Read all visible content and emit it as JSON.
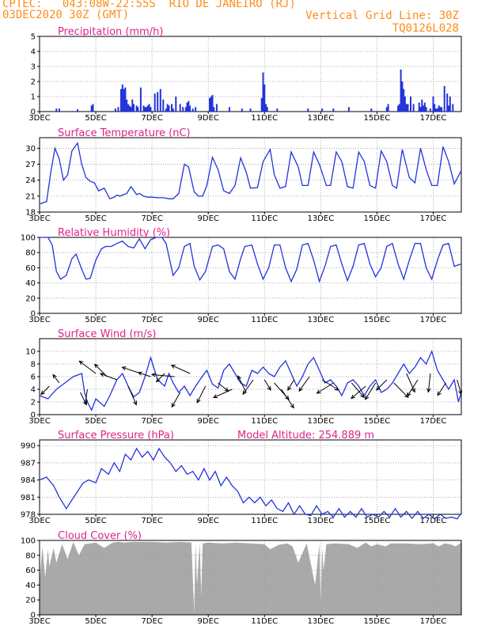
{
  "header": {
    "line1_left": "CPTEC:   043:08W-22:55S  RIO DE JANEIRO (RJ)",
    "line2_left": "03DEC2020 30Z (GMT)",
    "line1_right": "Vertical Grid Line: 30Z",
    "line2_right": "TQ0126L028"
  },
  "colors": {
    "header": "#ff8c1a",
    "title": "#e0208a",
    "line": "#2233dd",
    "cloud": "#a9a9a9",
    "grid": "#999999"
  },
  "x_ticks": [
    "3DEC",
    "5DEC",
    "7DEC",
    "9DEC",
    "11DEC",
    "13DEC",
    "15DEC",
    "17DEC"
  ],
  "x_tick_day_offset": [
    0,
    2,
    4,
    6,
    8,
    10,
    12,
    14
  ],
  "x_range_days": [
    0,
    15
  ],
  "chart_data": [
    {
      "id": "precip",
      "type": "bar",
      "title": "Precipitation (mm/h)",
      "ylim": [
        0,
        5
      ],
      "yticks": [
        0,
        1,
        2,
        3,
        4,
        5
      ],
      "x_days": [
        0.6,
        0.7,
        1.35,
        1.85,
        1.9,
        2.7,
        2.8,
        2.9,
        2.95,
        3.0,
        3.05,
        3.1,
        3.15,
        3.2,
        3.25,
        3.3,
        3.35,
        3.45,
        3.5,
        3.6,
        3.7,
        3.75,
        3.8,
        3.85,
        3.9,
        3.95,
        4.1,
        4.2,
        4.3,
        4.4,
        4.5,
        4.55,
        4.6,
        4.7,
        4.75,
        4.85,
        5.0,
        5.1,
        5.2,
        5.25,
        5.3,
        5.35,
        5.45,
        5.55,
        6.05,
        6.1,
        6.15,
        6.2,
        6.3,
        6.75,
        7.2,
        7.5,
        7.9,
        7.95,
        8.0,
        8.05,
        8.1,
        8.45,
        9.55,
        10.05,
        10.45,
        11.0,
        11.8,
        12.35,
        12.4,
        12.75,
        12.8,
        12.85,
        12.9,
        12.95,
        13.0,
        13.05,
        13.1,
        13.2,
        13.3,
        13.5,
        13.55,
        13.6,
        13.65,
        13.7,
        13.75,
        13.9,
        14.0,
        14.05,
        14.1,
        14.15,
        14.2,
        14.25,
        14.3,
        14.4,
        14.5,
        14.55,
        14.6,
        14.7
      ],
      "values": [
        0.2,
        0.2,
        0.15,
        0.4,
        0.5,
        0.2,
        0.3,
        1.5,
        1.8,
        1.5,
        1.6,
        0.8,
        0.5,
        0.4,
        0.3,
        0.8,
        0.5,
        0.4,
        0.3,
        1.6,
        0.4,
        0.3,
        0.3,
        0.4,
        0.5,
        0.3,
        1.2,
        1.3,
        1.5,
        0.8,
        0.2,
        0.5,
        0.4,
        0.5,
        0.2,
        1.0,
        0.5,
        0.3,
        0.3,
        0.6,
        0.7,
        0.4,
        0.2,
        0.3,
        0.9,
        1.0,
        1.1,
        0.3,
        0.5,
        0.3,
        0.2,
        0.2,
        0.9,
        2.6,
        1.8,
        0.5,
        0.3,
        0.2,
        0.2,
        0.2,
        0.2,
        0.3,
        0.2,
        0.3,
        0.5,
        0.4,
        0.5,
        2.8,
        2.0,
        1.5,
        1.0,
        0.5,
        0.5,
        1.0,
        0.5,
        0.6,
        0.3,
        0.8,
        0.4,
        0.6,
        0.3,
        0.2,
        1.0,
        0.5,
        0.2,
        0.2,
        0.4,
        0.3,
        0.3,
        1.7,
        1.2,
        0.4,
        1.0,
        0.5
      ]
    },
    {
      "id": "temp",
      "type": "line",
      "title": "Surface Temperature (nC)",
      "ylim": [
        18,
        32
      ],
      "yticks": [
        18,
        21,
        24,
        27,
        30
      ],
      "x_days": [
        0,
        0.25,
        0.4,
        0.55,
        0.7,
        0.85,
        1.0,
        1.15,
        1.35,
        1.5,
        1.65,
        1.8,
        1.95,
        2.1,
        2.3,
        2.5,
        2.65,
        2.75,
        2.85,
        2.95,
        3.1,
        3.25,
        3.45,
        3.55,
        3.7,
        3.85,
        4.0,
        4.2,
        4.4,
        4.6,
        4.75,
        4.95,
        5.15,
        5.3,
        5.5,
        5.65,
        5.8,
        5.95,
        6.15,
        6.35,
        6.55,
        6.75,
        6.95,
        7.15,
        7.35,
        7.5,
        7.75,
        7.95,
        8.2,
        8.35,
        8.55,
        8.75,
        8.95,
        9.2,
        9.35,
        9.55,
        9.75,
        9.95,
        10.2,
        10.35,
        10.55,
        10.75,
        10.95,
        11.15,
        11.35,
        11.55,
        11.75,
        11.95,
        12.15,
        12.35,
        12.55,
        12.7,
        12.9,
        13.15,
        13.35,
        13.55,
        13.75,
        13.95,
        14.15,
        14.35,
        14.55,
        14.75,
        15.0
      ],
      "values": [
        19.5,
        20.0,
        25.5,
        30.0,
        28.0,
        24.0,
        25.0,
        29.5,
        31.0,
        27.0,
        24.5,
        23.8,
        23.5,
        22.0,
        22.5,
        20.5,
        20.8,
        21.2,
        21.0,
        21.2,
        21.5,
        22.8,
        21.3,
        21.5,
        21.0,
        20.8,
        20.8,
        20.7,
        20.7,
        20.5,
        20.5,
        21.5,
        27.0,
        26.5,
        21.8,
        21.0,
        21.0,
        23.0,
        28.3,
        26.0,
        22.0,
        21.5,
        23.0,
        28.2,
        25.5,
        22.5,
        22.6,
        27.5,
        29.8,
        25.0,
        22.5,
        22.8,
        29.3,
        26.5,
        23.0,
        23.0,
        29.3,
        27.0,
        23.0,
        23.0,
        29.3,
        27.5,
        22.8,
        22.5,
        29.3,
        27.5,
        23.0,
        22.5,
        29.5,
        27.5,
        23.0,
        22.5,
        29.8,
        24.5,
        23.5,
        30.0,
        26.0,
        23.0,
        23.0,
        30.3,
        27.5,
        23.3,
        25.8
      ]
    },
    {
      "id": "rh",
      "type": "line",
      "title": "Relative Humidity (%)",
      "ylim": [
        0,
        100
      ],
      "yticks": [
        0,
        20,
        40,
        60,
        80,
        100
      ],
      "x_days": [
        0,
        0.3,
        0.45,
        0.6,
        0.75,
        0.95,
        1.15,
        1.3,
        1.5,
        1.65,
        1.8,
        2.0,
        2.2,
        2.35,
        2.55,
        2.75,
        2.95,
        3.15,
        3.35,
        3.55,
        3.75,
        3.95,
        4.15,
        4.35,
        4.5,
        4.75,
        4.95,
        5.15,
        5.35,
        5.5,
        5.7,
        5.9,
        6.15,
        6.35,
        6.55,
        6.75,
        6.95,
        7.15,
        7.3,
        7.55,
        7.75,
        7.95,
        8.15,
        8.35,
        8.55,
        8.75,
        8.95,
        9.15,
        9.35,
        9.55,
        9.75,
        9.95,
        10.15,
        10.35,
        10.55,
        10.75,
        10.95,
        11.15,
        11.35,
        11.55,
        11.75,
        11.95,
        12.15,
        12.35,
        12.55,
        12.75,
        12.95,
        13.15,
        13.35,
        13.55,
        13.75,
        13.95,
        14.15,
        14.35,
        14.55,
        14.75,
        15.0
      ],
      "values": [
        100,
        100,
        90,
        55,
        45,
        50,
        72,
        78,
        58,
        45,
        46,
        70,
        85,
        88,
        88,
        92,
        95,
        88,
        86,
        98,
        85,
        97,
        100,
        100,
        92,
        50,
        60,
        88,
        92,
        62,
        44,
        55,
        88,
        90,
        85,
        55,
        45,
        72,
        88,
        90,
        65,
        45,
        60,
        90,
        90,
        60,
        42,
        58,
        90,
        92,
        70,
        42,
        62,
        88,
        90,
        65,
        43,
        62,
        90,
        92,
        65,
        48,
        60,
        88,
        92,
        65,
        45,
        70,
        92,
        92,
        60,
        45,
        70,
        90,
        92,
        62,
        65
      ]
    },
    {
      "id": "wind",
      "type": "line",
      "title": "Surface Wind (m/s)",
      "ylim": [
        0,
        12
      ],
      "yticks": [
        0,
        2,
        4,
        6,
        8,
        10
      ],
      "x_days": [
        0,
        0.3,
        0.6,
        0.9,
        1.2,
        1.5,
        1.6,
        1.7,
        1.85,
        2.0,
        2.3,
        2.5,
        2.75,
        2.95,
        3.15,
        3.35,
        3.55,
        3.75,
        3.95,
        4.2,
        4.45,
        4.6,
        4.75,
        4.95,
        5.15,
        5.35,
        5.55,
        5.75,
        5.95,
        6.15,
        6.35,
        6.55,
        6.75,
        6.95,
        7.15,
        7.35,
        7.55,
        7.75,
        7.95,
        8.15,
        8.35,
        8.55,
        8.75,
        8.95,
        9.15,
        9.35,
        9.55,
        9.75,
        9.95,
        10.15,
        10.35,
        10.55,
        10.75,
        10.95,
        11.15,
        11.35,
        11.55,
        11.75,
        11.95,
        12.15,
        12.35,
        12.55,
        12.75,
        12.95,
        13.15,
        13.35,
        13.55,
        13.75,
        13.95,
        14.15,
        14.35,
        14.55,
        14.75,
        14.9,
        15.0
      ],
      "values": [
        3,
        2.5,
        4.0,
        5.0,
        6.0,
        6.5,
        3.5,
        2.0,
        0.7,
        2.5,
        1.3,
        3.0,
        5.5,
        6.5,
        4.5,
        2.8,
        3.5,
        6.0,
        9.0,
        5.5,
        4.5,
        6.5,
        5.0,
        3.5,
        4.5,
        3.0,
        4.5,
        5.8,
        7.0,
        4.8,
        4.2,
        7.0,
        8.0,
        6.5,
        5.0,
        4.5,
        7.0,
        6.5,
        7.5,
        6.5,
        6.0,
        7.5,
        8.5,
        6.5,
        4.5,
        6.0,
        8.0,
        9.0,
        7.0,
        5.0,
        5.5,
        4.5,
        3.0,
        5.0,
        5.5,
        4.5,
        3.0,
        4.5,
        5.5,
        3.5,
        4.0,
        5.0,
        6.5,
        8.0,
        6.5,
        7.5,
        9.0,
        8.0,
        10.0,
        7.0,
        5.5,
        4.0,
        5.5,
        2.0,
        3.5
      ]
    },
    {
      "id": "pres",
      "type": "line",
      "title": "Surface Pressure (hPa)",
      "annotation": "Model Altitude: 254.889 m",
      "ylim": [
        978,
        991
      ],
      "yticks": [
        978,
        981,
        984,
        987,
        990
      ],
      "x_days": [
        0,
        0.25,
        0.5,
        0.7,
        0.95,
        1.15,
        1.35,
        1.55,
        1.75,
        2.0,
        2.2,
        2.45,
        2.65,
        2.85,
        3.05,
        3.25,
        3.45,
        3.65,
        3.85,
        4.05,
        4.25,
        4.45,
        4.65,
        4.85,
        5.05,
        5.25,
        5.45,
        5.65,
        5.85,
        6.05,
        6.25,
        6.45,
        6.65,
        6.85,
        7.05,
        7.25,
        7.45,
        7.65,
        7.85,
        8.05,
        8.25,
        8.45,
        8.65,
        8.85,
        9.05,
        9.25,
        9.45,
        9.65,
        9.85,
        10.05,
        10.25,
        10.45,
        10.65,
        10.85,
        11.05,
        11.25,
        11.45,
        11.65,
        11.85,
        12.05,
        12.25,
        12.45,
        12.65,
        12.85,
        13.05,
        13.25,
        13.45,
        13.65,
        13.85,
        14.05,
        14.25,
        14.45,
        14.65,
        14.85,
        15.0
      ],
      "values": [
        984,
        984.5,
        983,
        981,
        979,
        980.5,
        982,
        983.5,
        984,
        983.5,
        986,
        985,
        987,
        985.5,
        988.5,
        987.5,
        989.5,
        988,
        989,
        987.5,
        989.5,
        988,
        987,
        985.5,
        986.5,
        985,
        985.5,
        984,
        986,
        984,
        985.5,
        983,
        984.5,
        983,
        982,
        980,
        981,
        980,
        981,
        979.5,
        980.5,
        979,
        978.5,
        980,
        978,
        979.5,
        978,
        977.8,
        979.5,
        978,
        978.5,
        977.5,
        979,
        977.5,
        978.5,
        977.5,
        979,
        977.5,
        978,
        977.5,
        978.5,
        977.5,
        979,
        977.5,
        978.5,
        977.3,
        978.5,
        977.3,
        978,
        977.2,
        978,
        977.3,
        977.5,
        977.2,
        978.2
      ]
    },
    {
      "id": "cloud",
      "type": "area",
      "title": "Cloud Cover (%)",
      "ylim": [
        0,
        100
      ],
      "yticks": [
        0,
        20,
        40,
        60,
        80,
        100
      ],
      "x_days": [
        0,
        0.1,
        0.2,
        0.3,
        0.35,
        0.5,
        0.6,
        0.8,
        1.0,
        1.2,
        1.4,
        1.6,
        1.8,
        2.0,
        2.3,
        2.6,
        2.8,
        3.0,
        3.3,
        3.6,
        4.0,
        4.5,
        5.0,
        5.4,
        5.5,
        5.55,
        5.6,
        5.7,
        5.75,
        5.8,
        6.0,
        6.5,
        7.0,
        7.5,
        8.0,
        8.2,
        8.5,
        8.8,
        9.0,
        9.2,
        9.5,
        9.8,
        9.95,
        10.0,
        10.05,
        10.1,
        10.2,
        10.5,
        11.0,
        11.3,
        11.6,
        11.8,
        12.0,
        12.3,
        12.5,
        13.0,
        13.5,
        14.0,
        14.2,
        14.4,
        14.6,
        14.8,
        15.0
      ],
      "values": [
        45,
        92,
        50,
        88,
        65,
        90,
        70,
        95,
        75,
        98,
        80,
        95,
        96,
        97,
        90,
        97,
        98,
        97,
        98,
        98,
        98,
        97,
        98,
        97,
        3,
        97,
        40,
        97,
        25,
        96,
        97,
        96,
        97,
        96,
        95,
        88,
        94,
        96,
        92,
        70,
        96,
        40,
        95,
        15,
        90,
        60,
        95,
        96,
        95,
        90,
        97,
        92,
        95,
        92,
        96,
        96,
        95,
        96,
        92,
        96,
        95,
        92,
        97
      ]
    }
  ],
  "wind_vectors": {
    "note_units": "direction in degrees screen-angle, length in m/s",
    "x_days": [
      0.35,
      0.7,
      1.45,
      1.7,
      2.0,
      2.4,
      2.75,
      3.15,
      3.6,
      3.95,
      4.45,
      4.8,
      5.0,
      5.35,
      5.9,
      6.35,
      6.85,
      7.35,
      7.6,
      8.0,
      8.35,
      8.6,
      9.05,
      9.6,
      10.05,
      10.45,
      11.1,
      11.6,
      11.95,
      12.35,
      12.6,
      13.05,
      13.45,
      13.9,
      14.45,
      14.85
    ],
    "wind_y": [
      4.5,
      5.0,
      3.5,
      4.0,
      6.5,
      6.0,
      5.5,
      4.5,
      6.5,
      6.0,
      6.5,
      6.0,
      3.5,
      6.5,
      4.5,
      5.0,
      4.0,
      3.5,
      5.5,
      5.5,
      5.0,
      4.0,
      5.5,
      6.0,
      5.5,
      5.0,
      5.0,
      4.5,
      5.0,
      5.5,
      5.0,
      6.5,
      5.5,
      6.5,
      5.0,
      5.5
    ],
    "dx": [
      -4,
      -3,
      3,
      -1,
      -8,
      -6,
      -8,
      4,
      -9,
      -6,
      -4,
      -11,
      -4,
      -9,
      -4,
      5,
      -9,
      -4,
      -5,
      3,
      7,
      6,
      -3,
      -5,
      8,
      -8,
      6,
      -7,
      -5,
      -5,
      7,
      4,
      -5,
      -1,
      -4,
      2
    ],
    "dy": [
      4,
      -4,
      6,
      7,
      -6,
      -6,
      -3,
      9,
      -3,
      -2,
      4,
      -1,
      7,
      -4,
      8,
      4,
      4,
      -8,
      7,
      5,
      8,
      9,
      5,
      7,
      5,
      5,
      7,
      6,
      8,
      5,
      7,
      9,
      8,
      9,
      6,
      7
    ]
  }
}
